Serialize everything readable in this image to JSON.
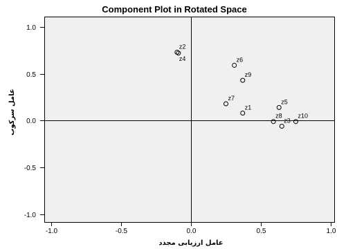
{
  "chart_data": {
    "type": "scatter",
    "title": "Component Plot in Rotated Space",
    "xlabel": "عامل ارزیابی مجدد",
    "ylabel": "عامل سرکوب",
    "xlim": [
      -1.05,
      1.03
    ],
    "ylim": [
      -1.09,
      1.11
    ],
    "xticks": [
      -1.0,
      -0.5,
      0.0,
      0.5,
      1.0
    ],
    "xtick_labels": [
      "-1.0",
      "-0.5",
      "0.0",
      "0.5",
      "1.0"
    ],
    "yticks": [
      1.0,
      0.5,
      0.0,
      -0.5,
      -1.0
    ],
    "ytick_labels": [
      "1.0",
      "0.5",
      "0.0",
      "-0.5",
      "-1.0"
    ],
    "grid": false,
    "reference_lines": {
      "x": 0,
      "y": 0
    },
    "colors": {
      "plot_background": "#f0f0f0",
      "marker": "#000000",
      "axes": "#000000"
    },
    "points": [
      {
        "label": "z1",
        "x": 0.37,
        "y": 0.08
      },
      {
        "label": "z2",
        "x": -0.1,
        "y": 0.73
      },
      {
        "label": "z3",
        "x": 0.65,
        "y": -0.06
      },
      {
        "label": "z4",
        "x": -0.09,
        "y": 0.72
      },
      {
        "label": "z5",
        "x": 0.63,
        "y": 0.14
      },
      {
        "label": "z6",
        "x": 0.31,
        "y": 0.59
      },
      {
        "label": "z7",
        "x": 0.25,
        "y": 0.18
      },
      {
        "label": "z8",
        "x": 0.59,
        "y": -0.01
      },
      {
        "label": "z9",
        "x": 0.37,
        "y": 0.43
      },
      {
        "label": "z10",
        "x": 0.75,
        "y": -0.01
      }
    ]
  }
}
